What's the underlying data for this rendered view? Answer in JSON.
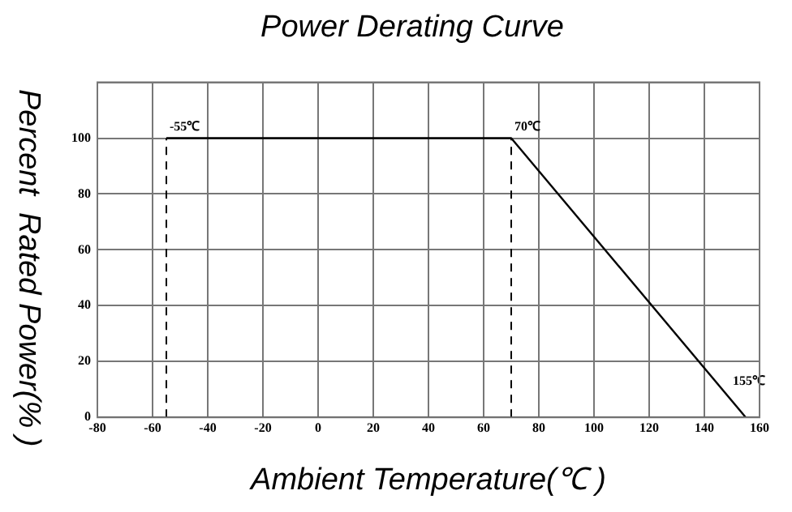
{
  "chart_data": {
    "type": "line",
    "title": "Power Derating Curve",
    "xlabel": "Ambient Temperature(℃ )",
    "ylabel": "Percent  Rated Power(% )",
    "x": [
      -55,
      70,
      155
    ],
    "series": [
      {
        "color": "#000000",
        "values": [
          100,
          100,
          0
        ]
      }
    ],
    "xlim": [
      -80,
      160
    ],
    "xticks": [
      -80,
      -60,
      -40,
      -20,
      0,
      20,
      40,
      60,
      80,
      100,
      120,
      140,
      160
    ],
    "ylim": [
      0,
      120
    ],
    "yticks": [
      0,
      20,
      40,
      60,
      80,
      100
    ],
    "ref_lines": [
      {
        "axis": "x",
        "value": -55,
        "line_style": "dashed",
        "color": "#000000"
      },
      {
        "axis": "x",
        "value": 70,
        "line_style": "dashed",
        "color": "#000000"
      }
    ],
    "annotations": [
      {
        "text": "-55℃",
        "x": -55,
        "y": 100
      },
      {
        "text": "70℃",
        "x": 70,
        "y": 100
      },
      {
        "text": "155℃",
        "x": 155,
        "y": 0
      }
    ],
    "grid": true,
    "legend": false,
    "marker": "none",
    "line_style": "solid"
  }
}
